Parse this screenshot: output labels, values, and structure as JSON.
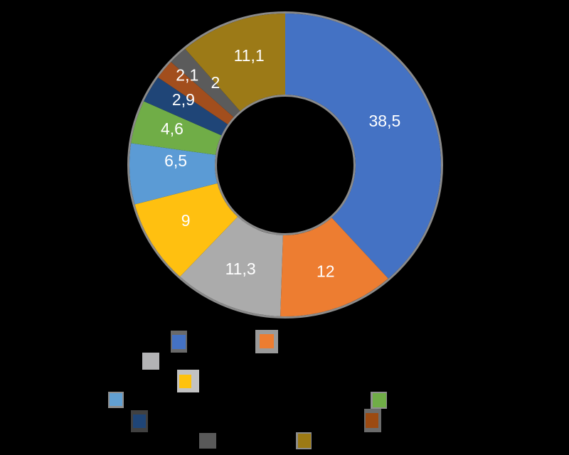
{
  "chart_data": {
    "type": "pie",
    "subtype": "doughnut",
    "title": "",
    "values": [
      38.5,
      12,
      11.3,
      9,
      6.5,
      4.6,
      2.9,
      2.1,
      2,
      11.1
    ],
    "data_labels": [
      "38,5",
      "12",
      "11,3",
      "9",
      "6,5",
      "4,6",
      "2,9",
      "2,1",
      "2",
      "11,1"
    ],
    "slice_colors": [
      "#4472C4",
      "#ED7D31",
      "#ABABAB",
      "#FFC010",
      "#5B9BD5",
      "#70AD47",
      "#1F4577",
      "#A24E1D",
      "#5B5B5B",
      "#9C7A17"
    ],
    "start_angle_deg": 0,
    "direction": "clockwise",
    "hole_ratio": 0.45,
    "background_color": "#000000",
    "data_label_color": "#FFFFFF",
    "edge_halo_color": "#8A8A8A",
    "legend": {
      "labels_visible": false,
      "note": "legend text not visible against background; only color swatches visible",
      "swatches": [
        {
          "name": "blue",
          "color": "#4472C4",
          "frame_color": "#6A6A6A"
        },
        {
          "name": "orange",
          "color": "#ED7D31",
          "frame_color": "#9A9A9A"
        },
        {
          "name": "gray",
          "color": "#B3B3B5",
          "frame_color": "#B3B3B5"
        },
        {
          "name": "yellow",
          "color": "#FEC20E",
          "frame_color": "#C2C2C2"
        },
        {
          "name": "light-blue",
          "color": "#62A0D2",
          "frame_color": "#8F8F8F"
        },
        {
          "name": "green",
          "color": "#70AD47",
          "frame_color": "#909090"
        },
        {
          "name": "navy",
          "color": "#1F4577",
          "frame_color": "#414141"
        },
        {
          "name": "rust",
          "color": "#9C4A11",
          "frame_color": "#6B6B6B"
        },
        {
          "name": "dark-gray",
          "color": "#595959",
          "frame_color": "#595959"
        },
        {
          "name": "olive",
          "color": "#9C7A14",
          "frame_color": "#8C8C8C"
        }
      ]
    }
  }
}
